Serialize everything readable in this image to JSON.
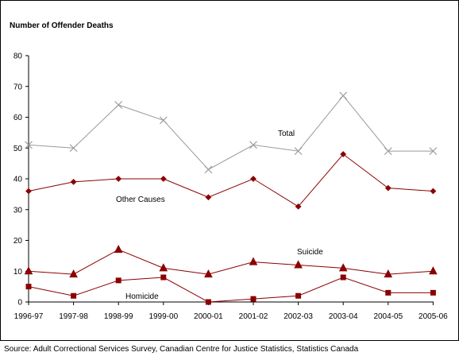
{
  "chart_data": {
    "type": "line",
    "ylabel": "Number of Offender Deaths",
    "source": "Source: Adult Correctional Services Survey, Canadian Centre for Justice Statistics, Statistics Canada",
    "ylim": [
      0,
      80
    ],
    "yticks": [
      "0",
      "10",
      "20",
      "30",
      "40",
      "50",
      "60",
      "70",
      "80"
    ],
    "x": [
      "1996-97",
      "1997-98",
      "1998-99",
      "1999-00",
      "2000-01",
      "2001-02",
      "2002-03",
      "2003-04",
      "2004-05",
      "2005-06"
    ],
    "grid": false,
    "series": [
      {
        "name": "Total",
        "marker": "x",
        "color": "#9a9a9a",
        "values": [
          51,
          50,
          64,
          59,
          43,
          51,
          49,
          67,
          49,
          49
        ]
      },
      {
        "name": "Other Causes",
        "marker": "diamond",
        "color": "#8b0000",
        "values": [
          36,
          39,
          40,
          40,
          34,
          40,
          31,
          48,
          37,
          36
        ]
      },
      {
        "name": "Suicide",
        "marker": "triangle",
        "color": "#8b0000",
        "values": [
          10,
          9,
          17,
          11,
          9,
          13,
          12,
          11,
          9,
          10
        ]
      },
      {
        "name": "Homicide",
        "marker": "square",
        "color": "#8b0000",
        "values": [
          5,
          2,
          7,
          8,
          0,
          1,
          2,
          8,
          3,
          3
        ]
      }
    ]
  }
}
